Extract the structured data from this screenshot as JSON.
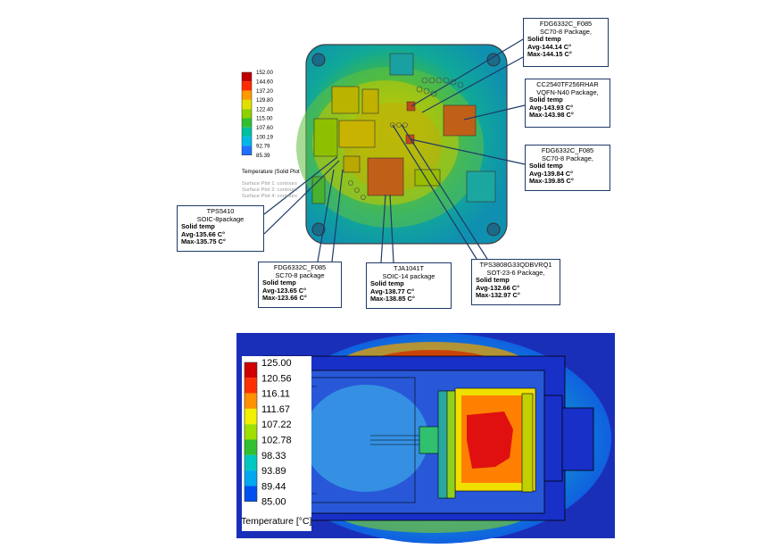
{
  "top_plot": {
    "legend": {
      "values": [
        "152.00",
        "144.60",
        "137.20",
        "129.80",
        "122.40",
        "115.00",
        "107.60",
        "100.19",
        "92.79",
        "85.39"
      ],
      "caption": "Temperature (Solid Plot",
      "notes": [
        "Surface Plot 1: contours",
        "Surface Plot 2: contours",
        "Surface Plot 4: contours"
      ]
    },
    "callouts": [
      {
        "id": "fdg-top",
        "lines": [
          "FDG6332C_F085",
          "SC70-8 Package,"
        ],
        "bold": [
          "Solid temp",
          "Avg-144.14 C°",
          "Max-144.15 C°"
        ]
      },
      {
        "id": "cc2540",
        "lines": [
          "CC2540TF256RHAR",
          "VQFN-N40  Package,"
        ],
        "bold": [
          "Solid temp",
          "Avg-143.93 C°",
          "Max-143.98 C°"
        ]
      },
      {
        "id": "fdg-right",
        "lines": [
          "FDG6332C_F085",
          "SC70-8  Package,"
        ],
        "bold": [
          "Solid temp",
          "Avg-139.84 C°",
          "Max-139.85 C°"
        ]
      },
      {
        "id": "tps5410",
        "lines": [
          "TPS5410",
          "SOIC-8package"
        ],
        "bold": [
          "Solid temp",
          "Avg-135.66 C°",
          "Max-135.75 C°"
        ]
      },
      {
        "id": "fdg-bottom",
        "lines": [
          "FDG6332C_F085",
          "SC70-8 package"
        ],
        "bold": [
          "Solid temp",
          "Avg-123.65 C°",
          "Max-123.66 C°"
        ]
      },
      {
        "id": "tja1041t",
        "lines": [
          "TJA1041T",
          "SOIC-14 package"
        ],
        "bold": [
          "Solid temp",
          "Avg-138.77 C°",
          "Max-138.85 C°"
        ]
      },
      {
        "id": "tps3808",
        "lines": [
          "TPS3808G33QDBVRQ1",
          "SOT-23-6 Package,"
        ],
        "bold": [
          "Solid temp",
          "Avg-132.66 C°",
          "Max-132.97 C°"
        ]
      }
    ]
  },
  "bottom_plot": {
    "legend": {
      "values": [
        "125.00",
        "120.56",
        "116.11",
        "111.67",
        "107.22",
        "102.78",
        "98.33",
        "93.89",
        "89.44",
        "85.00"
      ],
      "caption": "Temperature [°C]"
    }
  },
  "colors": {
    "legend_top": [
      "#c00000",
      "#ff2a00",
      "#ff9900",
      "#e0e000",
      "#8fd000",
      "#2fc02f",
      "#00c0a0",
      "#00b8e8",
      "#2070ff",
      "#0000d0"
    ],
    "legend_bottom": [
      "#d00000",
      "#ff3000",
      "#ff9000",
      "#f0f000",
      "#a0e000",
      "#30c030",
      "#00c8c0",
      "#00a8f0",
      "#0050f0",
      "#0000b0"
    ]
  }
}
